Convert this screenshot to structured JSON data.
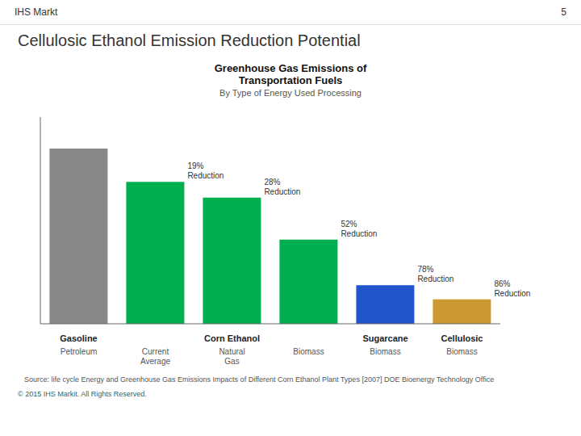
{
  "brand": "IHS Markt",
  "slide_number": "5",
  "slide_title": "Cellulosic Ethanol Emission Reduction Potential",
  "source": "Source: life cycle Energy and Greenhouse Gas Emissions Impacts of Different Corn Ethanol Plant Types [2007]  DOE Bioenergy Technology Office",
  "footer": "© 2015 IHS Markit. All Rights Reserved.",
  "chart_data": {
    "type": "bar",
    "title": "Greenhouse Gas Emissions of\nTransportation Fuels",
    "subtitle": "By Type of Energy Used Processing",
    "categories": [
      "Petroleum",
      "Current\nAverage",
      "Natural\nGas",
      "Biomass",
      "Biomass",
      "Biomass"
    ],
    "group_labels": [
      "Gasoline",
      null,
      "Corn Ethanol",
      null,
      "Sugarcane",
      "Cellulosic"
    ],
    "values": [
      1.0,
      0.81,
      0.72,
      0.48,
      0.22,
      0.14
    ],
    "colors": [
      "#888888",
      "#00b050",
      "#00b050",
      "#00b050",
      "#2255cc",
      "#cc9933"
    ],
    "annotations": [
      null,
      "19%\nReduction",
      "28%\nReduction",
      "52%\nReduction",
      "78%\nReduction",
      "86%\nReduction"
    ],
    "ylim": [
      0,
      1.18
    ],
    "grid": false,
    "tick_labels": "x"
  }
}
